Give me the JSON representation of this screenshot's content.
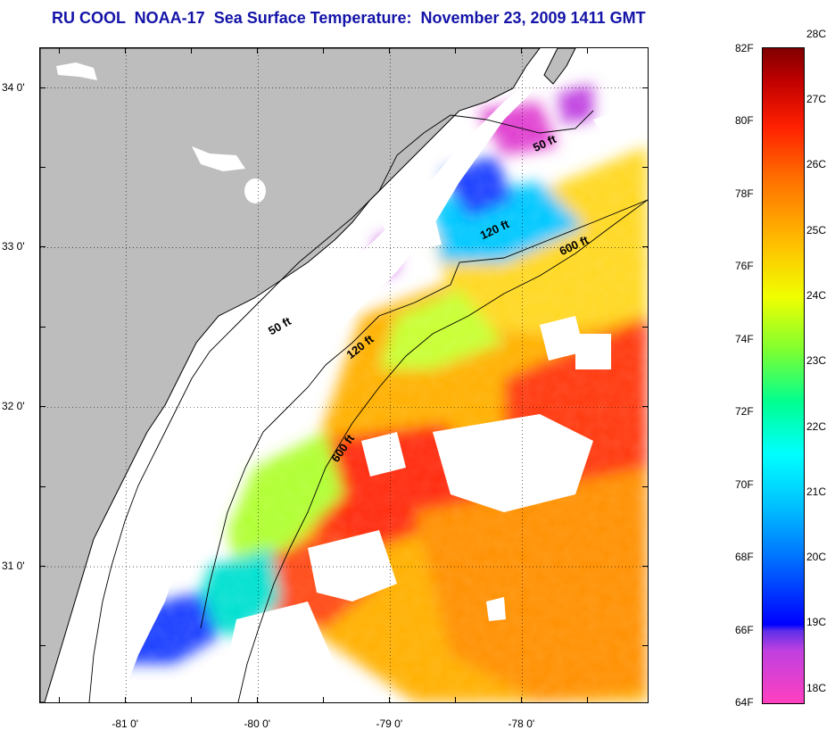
{
  "title": "RU COOL  NOAA-17  Sea Surface Temperature:  November 23, 2009 1411 GMT",
  "map": {
    "lat_range": [
      30.15,
      34.25
    ],
    "lon_range": [
      -81.65,
      -77.05
    ],
    "lat_ticks": [
      {
        "value": 34.0,
        "label": "34 0'"
      },
      {
        "value": 33.0,
        "label": "33 0'"
      },
      {
        "value": 32.0,
        "label": "32 0'"
      },
      {
        "value": 31.0,
        "label": "31 0'"
      }
    ],
    "lon_ticks": [
      {
        "value": -81.0,
        "label": "-81 0'"
      },
      {
        "value": -80.0,
        "label": "-80 0'"
      },
      {
        "value": -79.0,
        "label": "-79 0'"
      },
      {
        "value": -78.0,
        "label": "-78 0'"
      }
    ],
    "grid": "dotted",
    "land_color": "#bdbdbd",
    "cloud_color": "#ffffff",
    "isobath_labels": [
      {
        "text": "50 ft",
        "lon": -77.9,
        "lat": 33.6
      },
      {
        "text": "50 ft",
        "lon": -79.9,
        "lat": 32.45
      },
      {
        "text": "120 ft",
        "lon": -78.3,
        "lat": 33.05
      },
      {
        "text": "120 ft",
        "lon": -79.3,
        "lat": 32.3
      },
      {
        "text": "600 ft",
        "lon": -77.7,
        "lat": 32.95
      },
      {
        "text": "600 ft",
        "lon": -79.4,
        "lat": 31.65
      }
    ]
  },
  "colorbar": {
    "fahrenheit_labels": [
      "82F",
      "80F",
      "78F",
      "76F",
      "74F",
      "72F",
      "70F",
      "68F",
      "66F",
      "64F"
    ],
    "celsius_labels": [
      "28C",
      "27C",
      "26C",
      "25C",
      "24C",
      "23C",
      "22C",
      "21C",
      "20C",
      "19C",
      "18C"
    ],
    "f_range": [
      64,
      82
    ],
    "colors": [
      "#ff40c0",
      "#9030e0",
      "#0000ff",
      "#0090ff",
      "#00e0ff",
      "#00ffb0",
      "#80ff40",
      "#e8ff00",
      "#ffc000",
      "#ff7000",
      "#ff2000",
      "#d00000",
      "#800000"
    ]
  }
}
